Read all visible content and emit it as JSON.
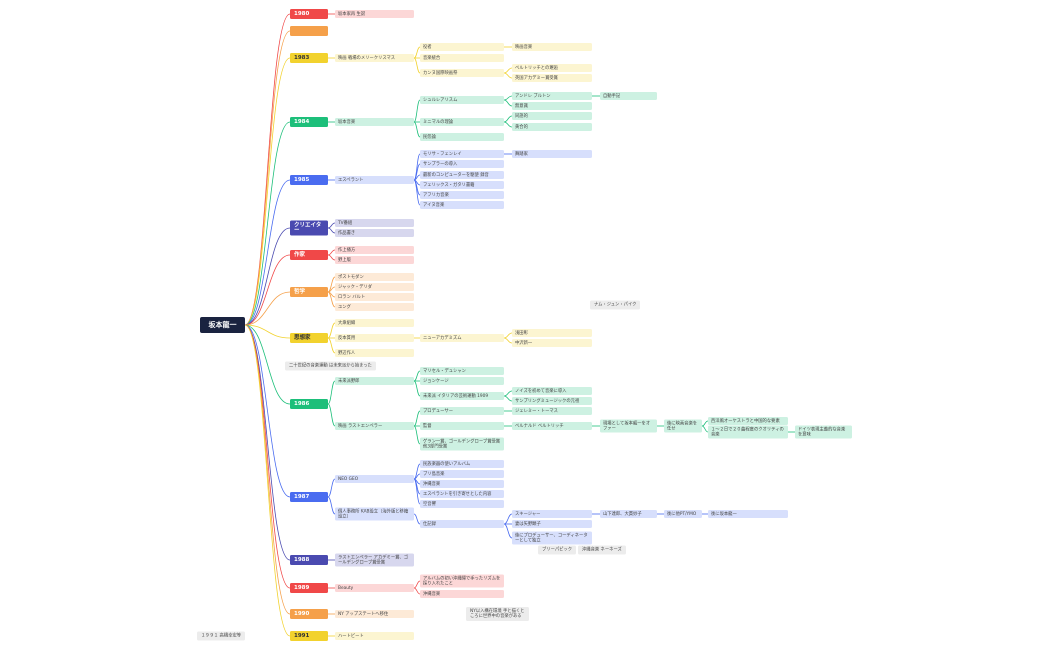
{
  "root": "坂本龍一",
  "branches": [
    {
      "label": "1980",
      "color": "#f04848",
      "children": [
        {
          "label": "坂本家再 生誕"
        }
      ]
    },
    {
      "color": "#f5a04a"
    },
    {
      "label": "1983",
      "color": "#f2d22e",
      "children": [
        {
          "label": "映画 戦場のメリークリスマス",
          "children": [
            {
              "label": "役者",
              "children": [
                {
                  "label": "映画音楽"
                }
              ]
            },
            {
              "label": "音楽統合"
            },
            {
              "label": "カンヌ国際映画祭",
              "children": [
                {
                  "label": "ベルトリッチとの邂逅"
                },
                {
                  "label": "英国アカデミー賞受賞"
                }
              ]
            }
          ]
        }
      ]
    },
    {
      "label": "1984",
      "color": "#1dbf7a",
      "children": [
        {
          "label": "坂本音楽",
          "children": [
            {
              "label": "シュルレアリスム",
              "children": [
                {
                  "label": "アンドレ ブルトン",
                  "children": [
                    {
                      "label": "自動手記"
                    }
                  ]
                },
                {
                  "label": "無意識"
                }
              ]
            },
            {
              "label": "ミニマルの理論",
              "children": [
                {
                  "label": "同語的"
                },
                {
                  "label": "黄合的"
                }
              ]
            },
            {
              "label": "民怨論"
            }
          ]
        }
      ]
    },
    {
      "label": "1985",
      "color": "#4a6cf0",
      "children": [
        {
          "label": "エスペラント",
          "children": [
            {
              "label": "モリサ・フェンレイ",
              "children": [
                {
                  "label": "舞踏家"
                }
              ]
            },
            {
              "label": "サンプラーの導入"
            },
            {
              "label": "最新のコンピューターを駆使 録音"
            },
            {
              "label": "フェリックス・ガタリ書籍"
            },
            {
              "label": "アフリカ音楽"
            },
            {
              "label": "アイヌ音楽"
            }
          ]
        }
      ]
    },
    {
      "label": "クリエイター",
      "color": "#4a4ab0",
      "children": [
        {
          "label": "TV番組"
        },
        {
          "label": "作品書き"
        }
      ]
    },
    {
      "label": "作家",
      "color": "#f04848",
      "children": [
        {
          "label": "作上播方"
        },
        {
          "label": "野上版"
        }
      ]
    },
    {
      "label": "哲学",
      "color": "#f5a04a",
      "children": [
        {
          "label": "ポストモダン"
        },
        {
          "label": "ジャック・デリダ"
        },
        {
          "label": "ロラン バルト"
        },
        {
          "label": "ユング"
        }
      ]
    },
    {
      "label": "思想家",
      "color": "#f2d22e",
      "children": [
        {
          "label": "大衆組織"
        },
        {
          "label": "反本質用",
          "children": [
            {
              "label": "ニューアカデミズム",
              "children": [
                {
                  "label": "浅田彰"
                },
                {
                  "label": "中沢新一"
                }
              ]
            }
          ]
        },
        {
          "label": "野辺作人"
        }
      ]
    },
    {
      "label": "1986",
      "color": "#1dbf7a",
      "children": [
        {
          "label": "未来派野郎",
          "children": [
            {
              "label": "マリセル・デュシャン"
            },
            {
              "label": "ジョンケージ"
            },
            {
              "label": "未来派 イタリアの芸術運動 1909",
              "children": [
                {
                  "label": "ノイズを初めて音楽に導入"
                },
                {
                  "label": "サンプリングミュージックの元祖"
                }
              ]
            }
          ]
        },
        {
          "label": "映画 ラストエンペラー",
          "children": [
            {
              "label": "プロデューサー",
              "children": [
                {
                  "label": "ジェレミー・トーマス"
                }
              ]
            },
            {
              "label": "監督",
              "children": [
                {
                  "label": "ベルナルド ベルトリッチ",
                  "children": [
                    {
                      "label": "現場として坂本龍一をオファー",
                      "children": [
                        {
                          "label": "後に映画音楽を任せ",
                          "children": [
                            {
                              "label": "西洋風オーケストラと中国的な要素"
                            },
                            {
                              "label": "１～２日で２０曲程度のクオリティの音楽",
                              "children": [
                                {
                                  "label": "ドイツ表現主義的な音楽を意味"
                                }
                              ]
                            }
                          ]
                        }
                      ]
                    }
                  ]
                }
              ]
            },
            {
              "label": "ゲラン一賞、ゴールデングローブ賞受賞 他3部門受賞"
            }
          ]
        }
      ]
    },
    {
      "label": "1987",
      "color": "#4a6cf0",
      "children": [
        {
          "label": "NEO GEO",
          "children": [
            {
              "label": "民族楽器の使いアルバム"
            },
            {
              "label": "ブリ島音楽"
            },
            {
              "label": "沖縄音楽"
            },
            {
              "label": "エスペラントを引き寄せとした内容"
            },
            {
              "label": "空音響"
            }
          ]
        },
        {
          "label": "個人事務所 KAB設立（海外版と移籍設立）",
          "children": [
            {
              "label": "仕記録",
              "children": [
                {
                  "label": "スキージャー",
                  "children": [
                    {
                      "label": "山下達郎、大貫妙子",
                      "children": [
                        {
                          "label": "後に他PT/YMO",
                          "children": [
                            {
                              "label": "後に坂本龍一"
                            }
                          ]
                        }
                      ]
                    }
                  ]
                },
                {
                  "label": "妻は矢野顕子"
                },
                {
                  "label": "後にプロデューサー、コーディネーターとして独立"
                }
              ]
            }
          ]
        }
      ]
    },
    {
      "label": "1988",
      "color": "#4a4ab0",
      "children": [
        {
          "label": "ラストエンペラー アカデミー賞、ゴールデングローブ賞受賞"
        }
      ]
    },
    {
      "label": "1989",
      "color": "#f04848",
      "children": [
        {
          "label": "Beauty",
          "children": [
            {
              "label": "アルバムの初い沖縄帰で手ったリズムを採り入れたこと"
            },
            {
              "label": "沖縄音楽"
            }
          ]
        }
      ]
    },
    {
      "label": "1990",
      "color": "#f5a04a",
      "children": [
        {
          "label": "NY アップステートへ移住"
        }
      ]
    },
    {
      "label": "1991",
      "color": "#f2d22e",
      "children": [
        {
          "label": "ハートビート"
        }
      ]
    }
  ],
  "notes": [
    {
      "text": "ナム・ジュン・パイク"
    },
    {
      "text": "二十世紀の音楽運動 は未来派から始まった"
    },
    {
      "text": "ブリーパピック"
    },
    {
      "text": "沖縄音楽 ネーネーズ"
    },
    {
      "text": "NY以入構在環境 手と描くところに世界中の音楽がある"
    },
    {
      "text": "１９９１ 高橋幸宏等"
    }
  ]
}
